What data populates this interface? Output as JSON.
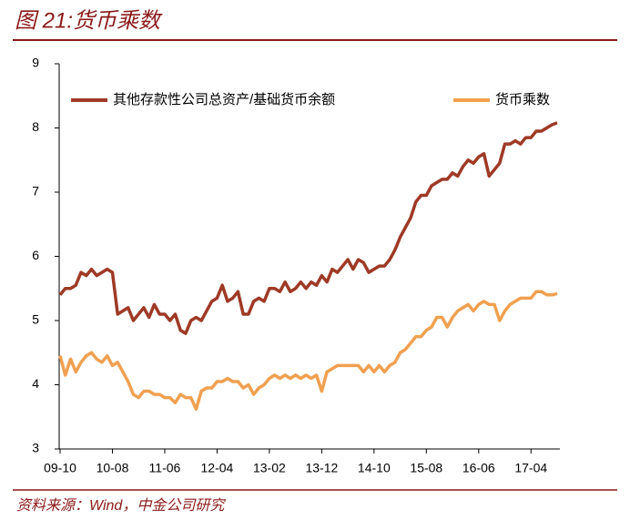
{
  "chart_data": {
    "type": "line",
    "title": "图 21:货币乘数",
    "source": "资料来源：Wind，中金公司研究",
    "categories": [
      "09-10",
      null,
      null,
      null,
      null,
      null,
      null,
      null,
      null,
      null,
      "10-08",
      null,
      null,
      null,
      null,
      null,
      null,
      null,
      null,
      null,
      "11-06",
      null,
      null,
      null,
      null,
      null,
      null,
      null,
      null,
      null,
      "12-04",
      null,
      null,
      null,
      null,
      null,
      null,
      null,
      null,
      null,
      "13-02",
      null,
      null,
      null,
      null,
      null,
      null,
      null,
      null,
      null,
      "13-12",
      null,
      null,
      null,
      null,
      null,
      null,
      null,
      null,
      null,
      "14-10",
      null,
      null,
      null,
      null,
      null,
      null,
      null,
      null,
      null,
      "15-08",
      null,
      null,
      null,
      null,
      null,
      null,
      null,
      null,
      null,
      "16-06",
      null,
      null,
      null,
      null,
      null,
      null,
      null,
      null,
      null,
      "17-04",
      null,
      null,
      null,
      null,
      null
    ],
    "series": [
      {
        "name": "其他存款性公司总资产/基础货币余额",
        "color": "#9e3a26",
        "values": [
          5.4,
          5.5,
          5.5,
          5.55,
          5.75,
          5.7,
          5.8,
          5.7,
          5.75,
          5.8,
          5.75,
          5.1,
          5.15,
          5.2,
          5.0,
          5.1,
          5.2,
          5.05,
          5.25,
          5.1,
          5.1,
          5.0,
          5.1,
          4.85,
          4.8,
          5.0,
          5.05,
          5.0,
          5.15,
          5.3,
          5.35,
          5.55,
          5.3,
          5.35,
          5.45,
          5.1,
          5.1,
          5.3,
          5.35,
          5.3,
          5.5,
          5.5,
          5.45,
          5.6,
          5.45,
          5.5,
          5.6,
          5.5,
          5.6,
          5.55,
          5.7,
          5.6,
          5.8,
          5.75,
          5.85,
          5.95,
          5.8,
          5.95,
          5.9,
          5.75,
          5.8,
          5.85,
          5.85,
          5.95,
          6.1,
          6.3,
          6.45,
          6.6,
          6.85,
          6.95,
          6.95,
          7.1,
          7.15,
          7.2,
          7.2,
          7.3,
          7.25,
          7.4,
          7.5,
          7.45,
          7.55,
          7.6,
          7.25,
          7.35,
          7.45,
          7.75,
          7.75,
          7.8,
          7.75,
          7.85,
          7.85,
          7.95,
          7.95,
          8.0,
          8.05,
          8.08
        ]
      },
      {
        "name": "货币乘数",
        "color": "#f0a050",
        "values": [
          4.45,
          4.15,
          4.4,
          4.2,
          4.35,
          4.45,
          4.5,
          4.4,
          4.35,
          4.45,
          4.3,
          4.35,
          4.2,
          4.05,
          3.85,
          3.8,
          3.9,
          3.9,
          3.85,
          3.85,
          3.8,
          3.8,
          3.72,
          3.85,
          3.8,
          3.8,
          3.62,
          3.9,
          3.95,
          3.95,
          4.05,
          4.05,
          4.1,
          4.05,
          4.05,
          3.95,
          4.0,
          3.85,
          3.95,
          4.0,
          4.1,
          4.15,
          4.1,
          4.15,
          4.1,
          4.15,
          4.1,
          4.15,
          4.1,
          4.15,
          3.9,
          4.2,
          4.25,
          4.3,
          4.3,
          4.3,
          4.3,
          4.3,
          4.2,
          4.3,
          4.2,
          4.3,
          4.2,
          4.3,
          4.35,
          4.5,
          4.55,
          4.65,
          4.75,
          4.75,
          4.85,
          4.9,
          5.05,
          5.05,
          4.9,
          5.05,
          5.15,
          5.2,
          5.25,
          5.15,
          5.25,
          5.3,
          5.25,
          5.25,
          5.0,
          5.15,
          5.25,
          5.3,
          5.35,
          5.35,
          5.35,
          5.45,
          5.45,
          5.4,
          5.4,
          5.42
        ]
      }
    ],
    "ylim": [
      3,
      9
    ],
    "yticks": [
      3,
      4,
      5,
      6,
      7,
      8,
      9
    ],
    "grid": false,
    "legend": "top"
  }
}
